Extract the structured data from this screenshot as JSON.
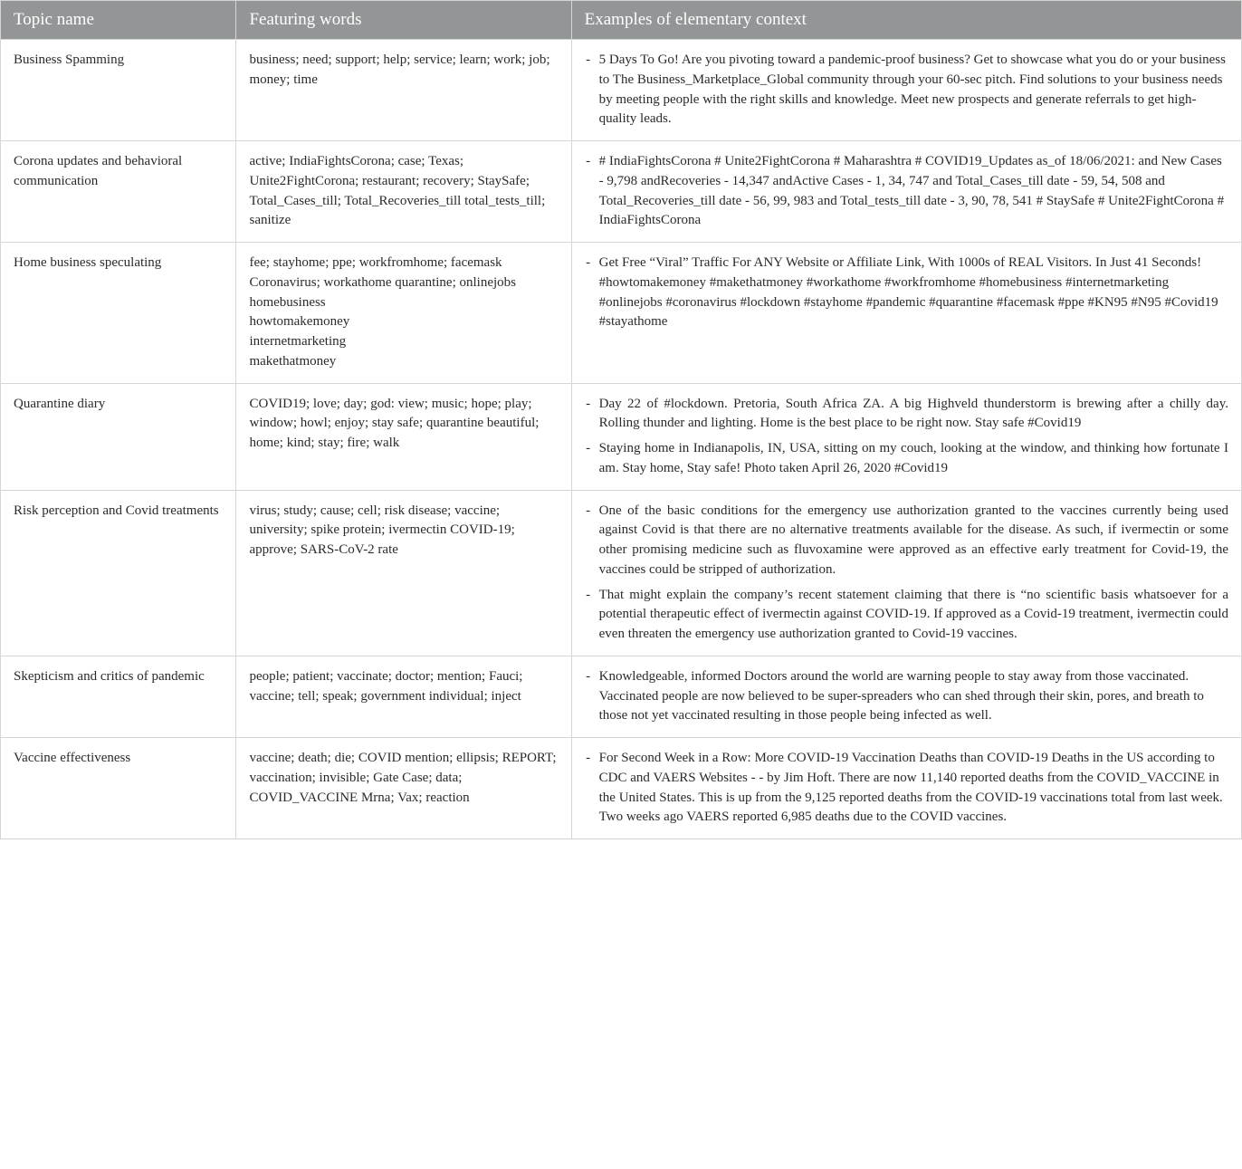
{
  "table": {
    "header_bg": "#929697",
    "header_fg": "#ffffff",
    "border_color": "#d5d5d5",
    "columns": [
      "Topic name",
      "Featuring words",
      "Examples of elementary context"
    ],
    "rows": [
      {
        "topic": "Business Spamming",
        "words": "business; need; support; help; service; learn; work; job; money; time",
        "examples": [
          "5 Days To Go! Are you pivoting toward a pandemic-proof business? Get to showcase what you do or your business to The Business_Marketplace_Global community through your 60-sec pitch. Find solutions to your business needs by meeting people with the right skills and knowledge. Meet new prospects and generate referrals to get high-quality leads."
        ]
      },
      {
        "topic": "Corona updates and behavioral communication",
        "words": "active; IndiaFightsCorona; case; Texas; Unite2FightCorona; restaurant; recovery; StaySafe; Total_Cases_till; Total_Recoveries_till total_tests_till; sanitize",
        "examples": [
          "# IndiaFightsCorona # Unite2FightCorona # Maharashtra # COVID19_Updates as_of 18/06/2021: and New Cases - 9,798 andRecoveries - 14,347 andActive Cases - 1, 34, 747 and Total_Cases_till date - 59, 54, 508 and Total_Recoveries_till date - 56, 99, 983 and Total_tests_till date - 3, 90, 78, 541 # StaySafe # Unite2FightCorona # IndiaFightsCorona"
        ]
      },
      {
        "topic": "Home business speculating",
        "words": "fee; stayhome; ppe; workfromhome; facemask Coronavirus; workathome quarantine; onlinejobs homebusiness\nhowtomakemoney\ninternetmarketing\nmakethatmoney",
        "examples": [
          "Get Free “Viral” Traffic For ANY Website or Affiliate Link, With 1000s of REAL Visitors. In Just 41 Seconds! #howtomakemoney #makethatmoney #workathome #workfromhome #homebusiness #internetmarketing #onlinejobs #coronavirus #lockdown #stayhome #pandemic #quarantine #facemask #ppe #KN95 #N95 #Covid19 #stayathome"
        ]
      },
      {
        "topic": "Quarantine diary",
        "words": "COVID19; love; day; god: view; music; hope; play; window; howl; enjoy; stay safe; quarantine beautiful; home; kind; stay; fire; walk",
        "examples": [
          "Day 22 of #lockdown. Pretoria, South Africa ZA. A big Highveld thunderstorm is brewing after a chilly day. Rolling thunder and lighting. Home is the best place to be right now. Stay safe #Covid19",
          "Staying home in Indianapolis, IN, USA, sitting on my couch, looking at the window, and thinking how fortunate I am. Stay home, Stay safe! Photo taken April 26, 2020 #Covid19"
        ],
        "justify": true
      },
      {
        "topic": "Risk perception and Covid treatments",
        "words": "virus; study; cause; cell; risk disease; vaccine; university; spike protein; ivermectin COVID-19; approve; SARS-CoV-2 rate",
        "examples": [
          "One of the basic conditions for the emergency use authorization granted to the vaccines currently being used against Covid is that there are no alternative treatments available for the disease. As such, if ivermectin or some other promising medicine such as fluvoxamine were approved as an effective early treatment for Covid-19, the vaccines could be stripped of authorization.",
          "That might explain the company’s recent statement claiming that there is “no scientific basis whatsoever for a potential therapeutic effect of ivermectin against COVID-19. If approved as a Covid-19 treatment, ivermectin could even threaten the emergency use authorization granted to Covid-19 vaccines."
        ],
        "justify": true
      },
      {
        "topic": "Skepticism and critics of pandemic",
        "words": "people; patient; vaccinate; doctor; mention; Fauci; vaccine; tell; speak; government individual; inject",
        "examples": [
          "Knowledgeable, informed Doctors around the world are warning people to stay away from those vaccinated. Vaccinated people are now believed to be super-spreaders who can shed through their skin, pores, and breath to those not yet vaccinated resulting in those people being infected as well."
        ]
      },
      {
        "topic": "Vaccine effectiveness",
        "words": "vaccine; death; die; COVID mention; ellipsis; REPORT; vaccination; invisible; Gate Case; data; COVID_VACCINE Mrna; Vax; reaction",
        "examples": [
          "For Second Week in a Row: More COVID-19 Vaccination Deaths than COVID-19 Deaths in the US according to CDC and VAERS Websites - - by Jim Hoft. There are now 11,140 reported deaths from the COVID_VACCINE in the United States. This is up from the 9,125 reported deaths from the COVID-19 vaccinations total from last week. Two weeks ago VAERS reported 6,985 deaths due to the COVID vaccines."
        ]
      }
    ]
  }
}
